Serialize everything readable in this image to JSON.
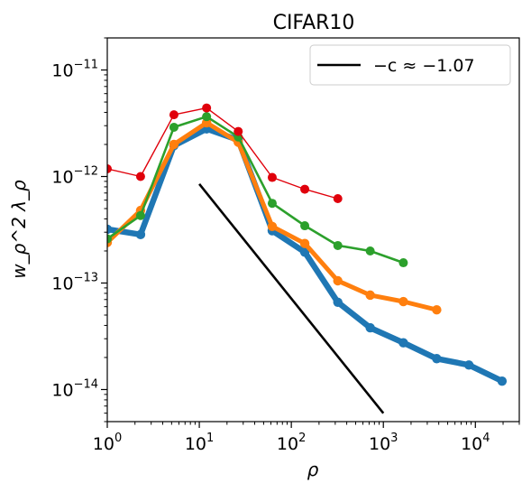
{
  "chart_data": {
    "type": "line",
    "title": "CIFAR10",
    "xlabel": "ρ",
    "ylabel": "w_ρ^2 λ_ρ",
    "xscale": "log",
    "yscale": "log",
    "xlim": [
      1,
      30000
    ],
    "ylim": [
      5e-15,
      2e-11
    ],
    "grid": false,
    "legend_position": "top-right",
    "x_tick_labels": [
      {
        "value": 1,
        "base": "10",
        "exp": "0"
      },
      {
        "value": 10,
        "base": "10",
        "exp": "1"
      },
      {
        "value": 100,
        "base": "10",
        "exp": "2"
      },
      {
        "value": 1000,
        "base": "10",
        "exp": "3"
      },
      {
        "value": 10000,
        "base": "10",
        "exp": "4"
      }
    ],
    "y_tick_labels": [
      {
        "value": 1e-14,
        "base": "10",
        "exp": "−14"
      },
      {
        "value": 1e-13,
        "base": "10",
        "exp": "−13"
      },
      {
        "value": 1e-12,
        "base": "10",
        "exp": "−12"
      },
      {
        "value": 1e-11,
        "base": "10",
        "exp": "−11"
      }
    ],
    "series": [
      {
        "color": "#1f77b4",
        "x": [
          1.0,
          2.3,
          5.3,
          12.0,
          26.5,
          62,
          140,
          320,
          720,
          1650,
          3800,
          8500,
          19500
        ],
        "y": [
          3.2e-13,
          2.85e-13,
          1.95e-12,
          2.8e-12,
          2.2e-12,
          3.1e-13,
          1.95e-13,
          6.6e-14,
          3.8e-14,
          2.75e-14,
          1.95e-14,
          1.7e-14,
          1.2e-14
        ]
      },
      {
        "color": "#ff7f0e",
        "x": [
          1.0,
          2.3,
          5.3,
          12.0,
          26.5,
          62,
          140,
          320,
          720,
          1650,
          3800
        ],
        "y": [
          2.4e-13,
          4.8e-13,
          2e-12,
          3.2e-12,
          2.1e-12,
          3.4e-13,
          2.35e-13,
          1.05e-13,
          7.7e-14,
          6.7e-14,
          5.6e-14
        ]
      },
      {
        "color": "#2ca02c",
        "x": [
          1.0,
          2.3,
          5.3,
          12.0,
          26.5,
          62,
          140,
          320,
          720,
          1650
        ],
        "y": [
          2.6e-13,
          4.3e-13,
          2.9e-12,
          3.65e-12,
          2.35e-12,
          5.6e-13,
          3.45e-13,
          2.25e-13,
          2e-13,
          1.55e-13
        ]
      },
      {
        "color": "#e0000b",
        "x": [
          1.0,
          2.3,
          5.3,
          12.0,
          26.5,
          62,
          140,
          320
        ],
        "y": [
          1.18e-12,
          1e-12,
          3.8e-12,
          4.4e-12,
          2.65e-12,
          9.8e-13,
          7.6e-13,
          6.2e-13
        ]
      }
    ],
    "reference_line": {
      "color": "#000000",
      "label": "−c ≈ −1.07",
      "x": [
        10,
        1000
      ],
      "y": [
        8.5e-13,
        6e-15
      ]
    }
  }
}
